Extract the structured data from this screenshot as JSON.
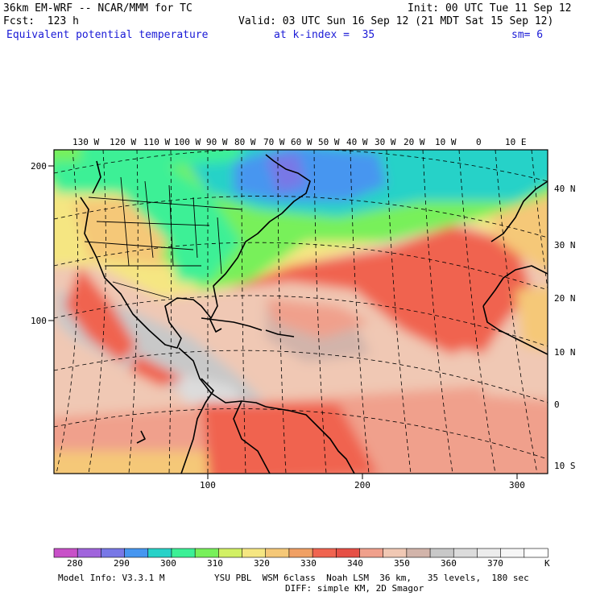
{
  "header": {
    "model": "36km EM-WRF -- NCAR/MMM for TC",
    "init": "Init: 00 UTC Tue 11 Sep 12",
    "fcst": "Fcst:  123 h",
    "valid": "Valid: 03 UTC Sun 16 Sep 12 (21 MDT Sat 15 Sep 12)",
    "field": "Equivalent potential temperature",
    "level": "at k-index =  35",
    "smooth": "sm= 6"
  },
  "map": {
    "top_lon_labels": [
      "130 W",
      "120 W",
      "110 W",
      "100 W",
      "90 W",
      "80 W",
      "70 W",
      "60 W",
      "50 W",
      "40 W",
      "30 W",
      "20 W",
      "10 W",
      "0",
      "10 E"
    ],
    "right_lat_labels": [
      "40 N",
      "30 N",
      "20 N",
      "10 N",
      "0",
      "10 S"
    ],
    "left_grid_labels": [
      "200",
      "100"
    ],
    "bottom_grid_labels": [
      "100",
      "200",
      "300"
    ]
  },
  "legend": {
    "levels": [
      "280",
      "290",
      "300",
      "310",
      "320",
      "330",
      "340",
      "350",
      "360",
      "370"
    ],
    "unit": "K",
    "colors": [
      "#c850c8",
      "#a064dc",
      "#7878e6",
      "#4696f0",
      "#28d2c8",
      "#3cf096",
      "#78f05a",
      "#d2f064",
      "#f5e682",
      "#f5c878",
      "#f0a064",
      "#f06450",
      "#e65046",
      "#f0a08c",
      "#f0c8b4",
      "#d2b4aa",
      "#c8c8c8",
      "#dcdcdc",
      "#ececec",
      "#f6f6f6",
      "#ffffff"
    ]
  },
  "footer": {
    "line1_left": "Model Info: V3.3.1 M",
    "line1_right": "YSU PBL  WSM 6class  Noah LSM  36 km,   35 levels,  180 sec",
    "line2": "DIFF: simple KM, 2D Smagor"
  }
}
